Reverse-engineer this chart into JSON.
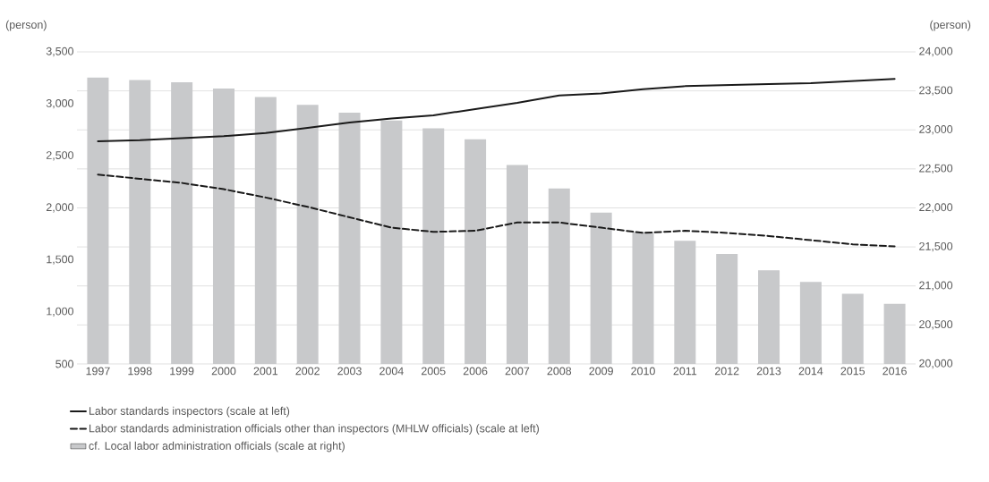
{
  "chart_data": {
    "type": "bar",
    "categories": [
      "1997",
      "1998",
      "1999",
      "2000",
      "2001",
      "2002",
      "2003",
      "2004",
      "2005",
      "2006",
      "2007",
      "2008",
      "2009",
      "2010",
      "2011",
      "2012",
      "2013",
      "2014",
      "2015",
      "2016"
    ],
    "series": [
      {
        "name": "Labor standards inspectors (scale at left)",
        "type": "line",
        "line_style": "solid",
        "color": "#1a1a1a",
        "values": [
          2640,
          2650,
          2670,
          2690,
          2720,
          2770,
          2820,
          2860,
          2890,
          2950,
          3010,
          3080,
          3100,
          3140,
          3170,
          3180,
          3190,
          3200,
          3220,
          3240
        ]
      },
      {
        "name": "Labor standards administration officials other than inspectors (MHLW officials) (scale at left)",
        "type": "line",
        "line_style": "dashed",
        "color": "#1a1a1a",
        "values": [
          2320,
          2280,
          2240,
          2180,
          2100,
          2010,
          1910,
          1810,
          1770,
          1780,
          1860,
          1860,
          1810,
          1760,
          1780,
          1760,
          1730,
          1690,
          1650,
          1630
        ]
      },
      {
        "name": "cf. Local labor administration officials (scale at right)",
        "axis": "y2",
        "color": "#c8c9cb",
        "values": [
          23670,
          23640,
          23610,
          23530,
          23420,
          23320,
          23220,
          23120,
          23020,
          22880,
          22550,
          22250,
          21940,
          21690,
          21580,
          21410,
          21200,
          21050,
          20900,
          20770
        ]
      }
    ],
    "ylabel": "(person)",
    "y2label": "(person)",
    "ylim": [
      500,
      3500
    ],
    "yticks": [
      500,
      {
        "value": 1000,
        "label": "1,000"
      },
      {
        "value": 1500,
        "label": "1,500"
      },
      {
        "value": 2000,
        "label": "2,000"
      },
      {
        "value": 2500,
        "label": "2,500"
      },
      {
        "value": 3000,
        "label": "3,000"
      },
      {
        "value": 3500,
        "label": "3,500"
      }
    ],
    "y2lim": [
      20000,
      24000
    ],
    "y2ticks": [
      {
        "value": 20000,
        "label": "20,000"
      },
      {
        "value": 20500,
        "label": "20,500"
      },
      {
        "value": 21000,
        "label": "21,000"
      },
      {
        "value": 21500,
        "label": "21,500"
      },
      {
        "value": 22000,
        "label": "22,000"
      },
      {
        "value": 22500,
        "label": "22,500"
      },
      {
        "value": 23000,
        "label": "23,000"
      },
      {
        "value": 23500,
        "label": "23,500"
      },
      {
        "value": 24000,
        "label": "24,000"
      }
    ],
    "grid": "y",
    "legend": "bottom"
  }
}
